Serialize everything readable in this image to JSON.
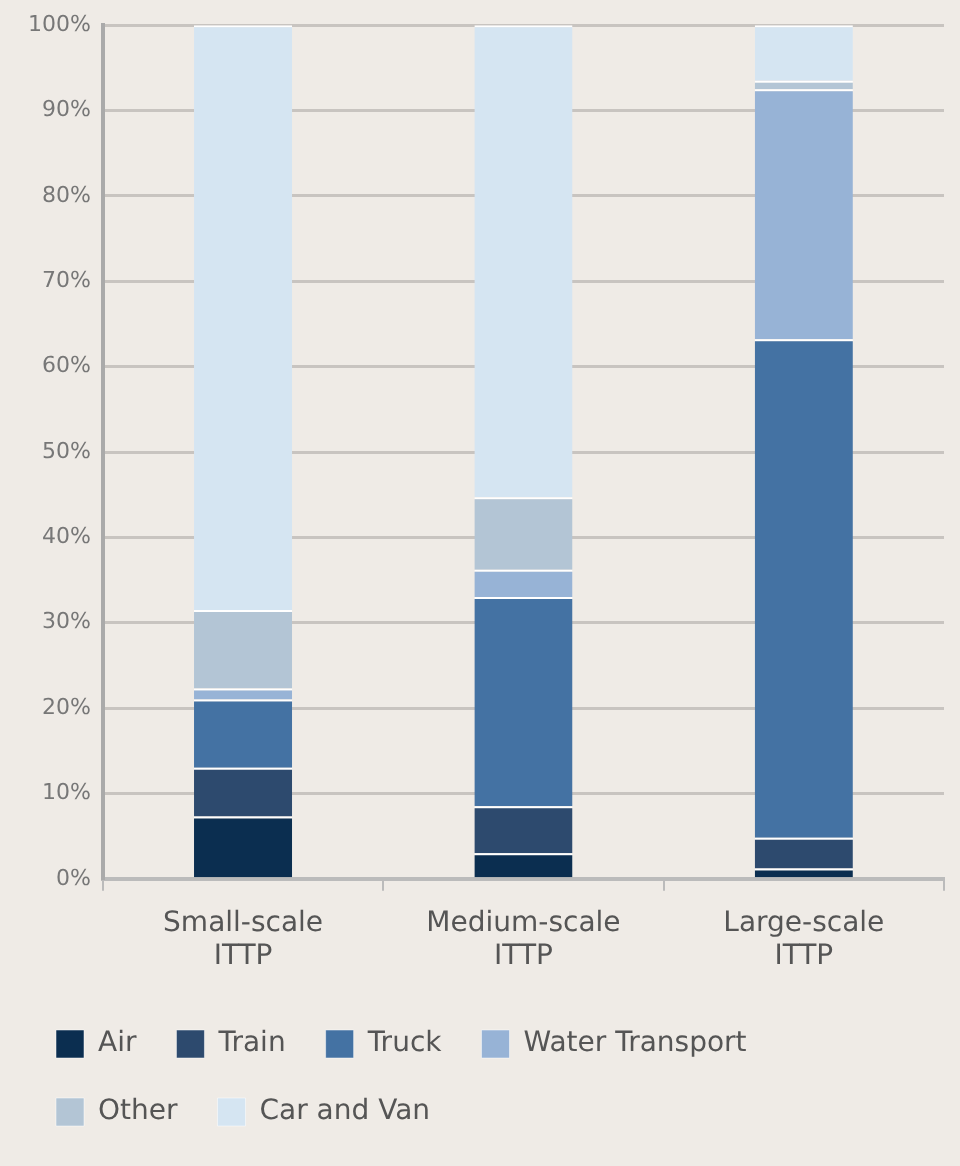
{
  "chart_data": {
    "type": "bar",
    "stacked": true,
    "categories": [
      "Small-scale ITTP",
      "Medium-scale ITTP",
      "Large-scale ITTP"
    ],
    "series": [
      {
        "name": "Air",
        "color": "#0b2e50",
        "values": [
          7.3,
          3,
          1.2
        ]
      },
      {
        "name": "Train",
        "color": "#2d4a6e",
        "values": [
          5.7,
          5.5,
          3.6
        ]
      },
      {
        "name": "Truck",
        "color": "#4472a3",
        "values": [
          8,
          24.5,
          58.4
        ]
      },
      {
        "name": "Water Transport",
        "color": "#97b3d6",
        "values": [
          1.3,
          3.2,
          29.3
        ]
      },
      {
        "name": "Other",
        "color": "#b3c5d5",
        "values": [
          9.2,
          8.5,
          1
        ]
      },
      {
        "name": "Car and Van",
        "color": "#d5e5f2",
        "values": [
          68.5,
          55.3,
          6.5
        ]
      }
    ],
    "ylim": [
      0,
      100
    ],
    "yticks": [
      {
        "value": 0,
        "label": "0%"
      },
      {
        "value": 10,
        "label": "10%"
      },
      {
        "value": 20,
        "label": "20%"
      },
      {
        "value": 30,
        "label": "30%"
      },
      {
        "value": 40,
        "label": "40%"
      },
      {
        "value": 50,
        "label": "50%"
      },
      {
        "value": 60,
        "label": "60%"
      },
      {
        "value": 70,
        "label": "70%"
      },
      {
        "value": 80,
        "label": "80%"
      },
      {
        "value": 90,
        "label": "90%"
      },
      {
        "value": 100,
        "label": "100%"
      }
    ],
    "grid": "y",
    "legend": "bottom"
  }
}
